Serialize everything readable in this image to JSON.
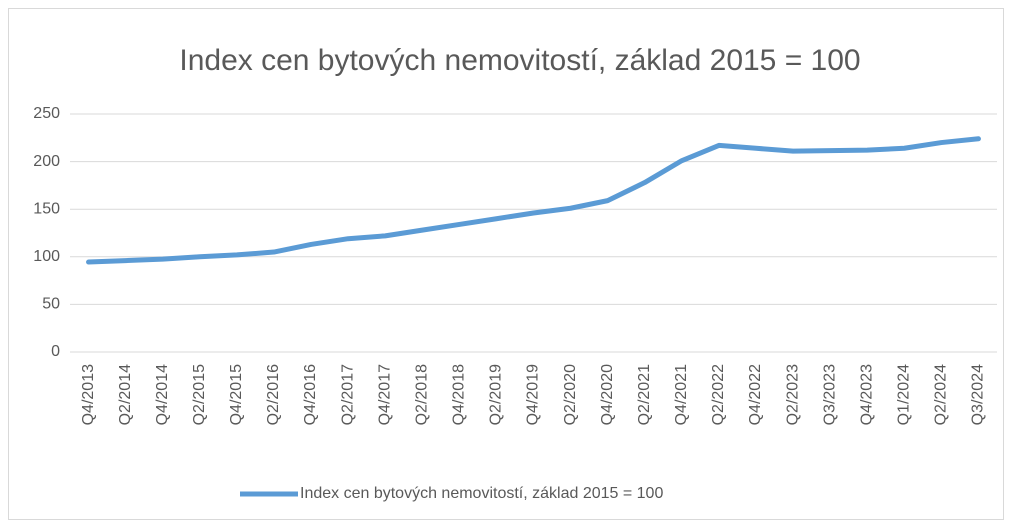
{
  "chart_data": {
    "type": "line",
    "title": "Index cen bytových nemovitostí, základ 2015 = 100",
    "categories": [
      "Q4/2013",
      "Q2/2014",
      "Q4/2014",
      "Q2/2015",
      "Q4/2015",
      "Q2/2016",
      "Q4/2016",
      "Q2/2017",
      "Q4/2017",
      "Q2/2018",
      "Q4/2018",
      "Q2/2019",
      "Q4/2019",
      "Q2/2020",
      "Q4/2020",
      "Q2/2021",
      "Q4/2021",
      "Q2/2022",
      "Q4/2022",
      "Q2/2023",
      "Q3/2023",
      "Q4/2023",
      "Q1/2024",
      "Q2/2024",
      "Q3/2024"
    ],
    "series": [
      {
        "name": "Index cen bytových nemovitostí, základ 2015 = 100",
        "color": "#5b9bd5",
        "values": [
          94.5,
          96,
          97.5,
          100,
          102,
          105,
          113,
          119,
          122,
          128,
          134,
          140,
          146,
          151,
          159,
          178,
          201,
          217,
          214,
          211,
          211.5,
          212,
          214,
          220,
          224
        ]
      }
    ],
    "ylim": [
      0,
      250
    ],
    "yticks": [
      0,
      50,
      100,
      150,
      200,
      250
    ],
    "grid": true,
    "legend": "bottom"
  }
}
